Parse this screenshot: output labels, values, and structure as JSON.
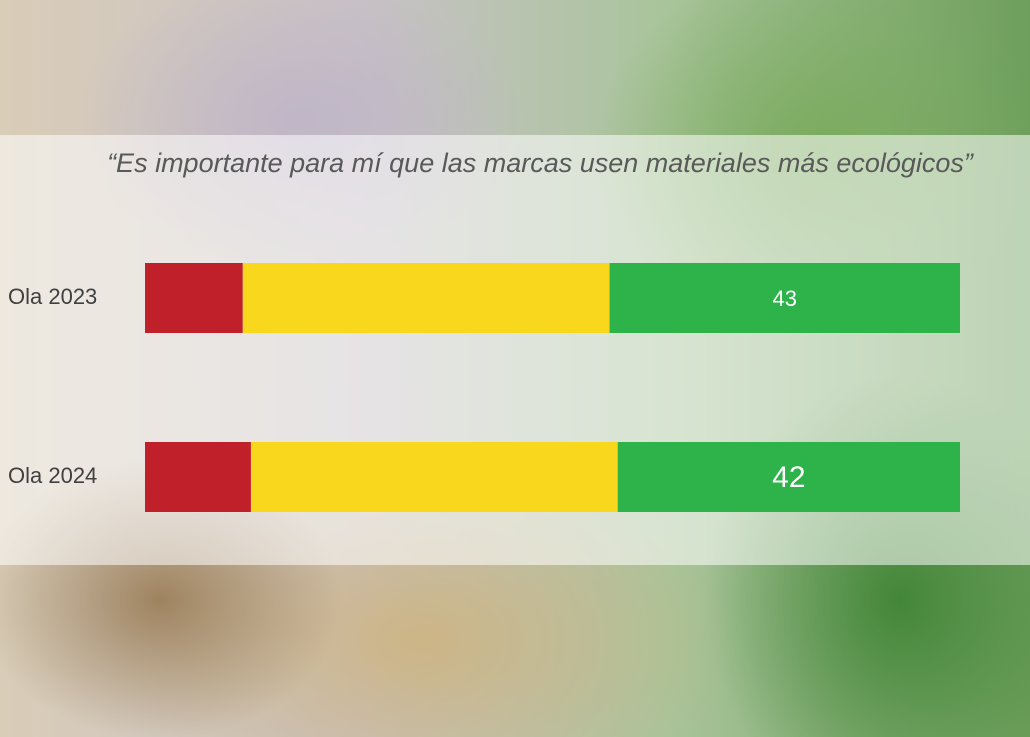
{
  "chart_data": {
    "type": "bar",
    "orientation": "horizontal",
    "stacked": true,
    "title": "“Es importante para mí que las marcas usen materiales más ecológicos”",
    "categories": [
      "Ola 2023",
      "Ola 2024"
    ],
    "series": [
      {
        "color": "#c0202a",
        "values": [
          12,
          13
        ],
        "show_values": false
      },
      {
        "color": "#f9d71c",
        "values": [
          45,
          45
        ],
        "show_values": false
      },
      {
        "color": "#2db34a",
        "values": [
          43,
          42
        ],
        "show_values": true
      }
    ]
  }
}
